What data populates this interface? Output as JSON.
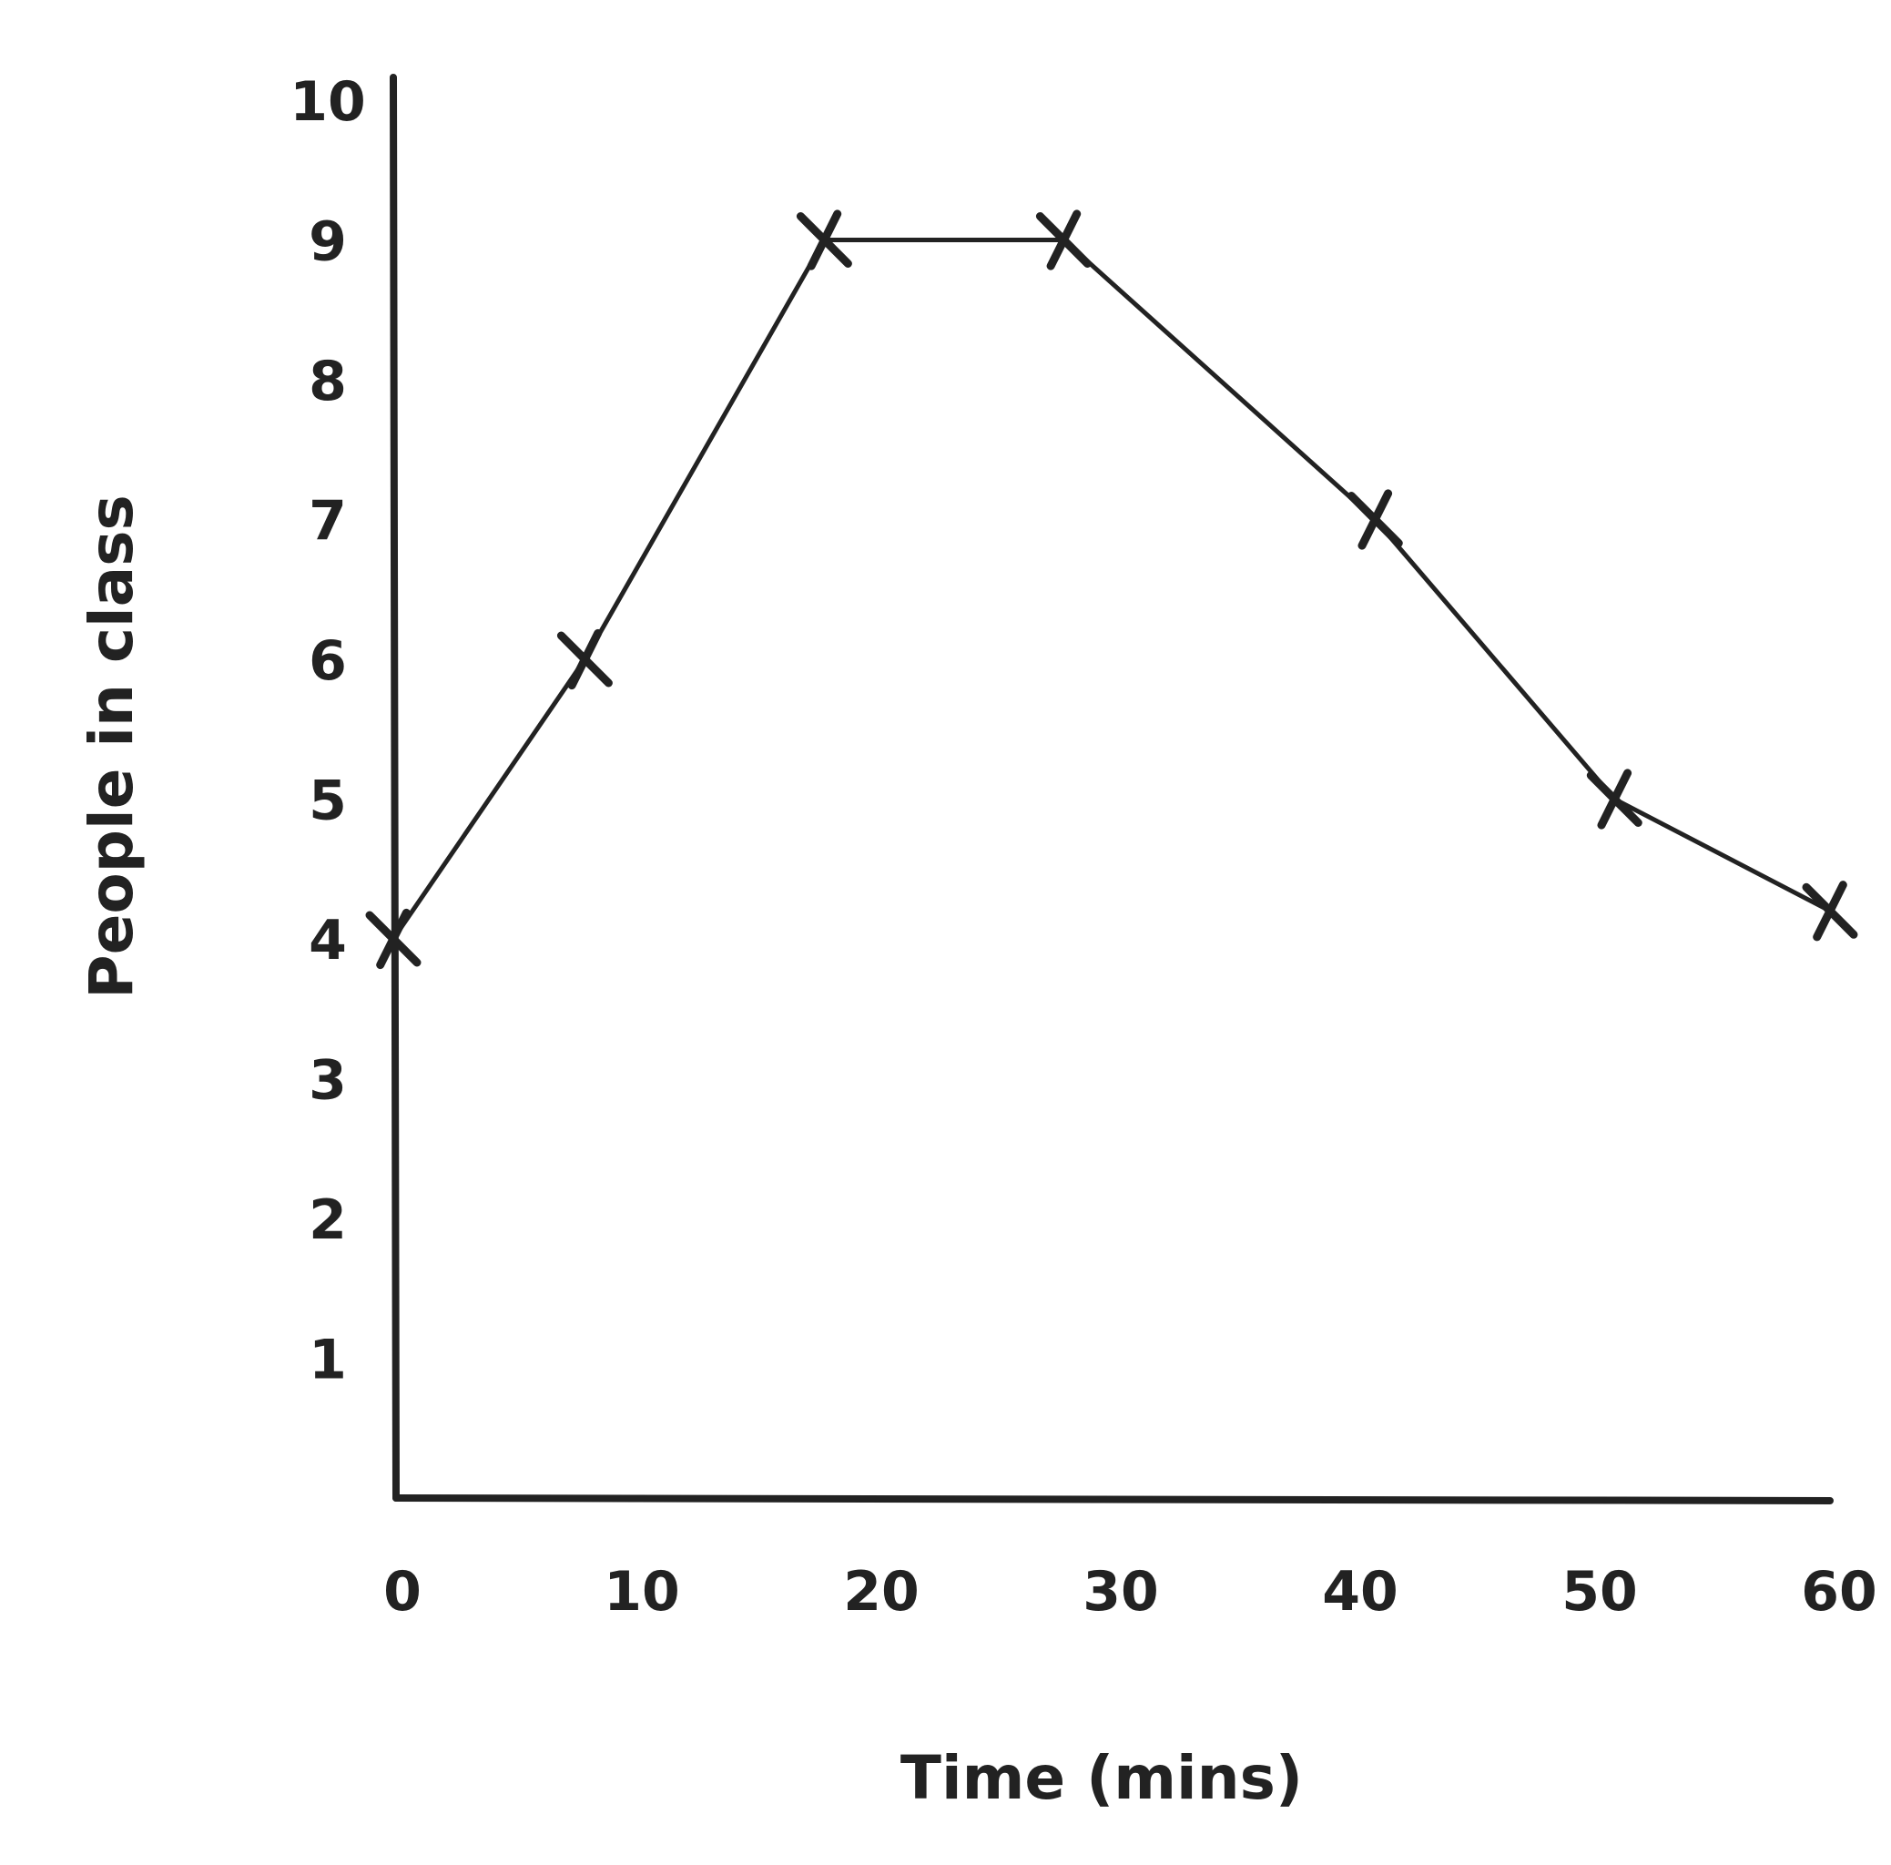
{
  "chart_data": {
    "type": "line",
    "title": "",
    "xlabel": "Time (mins)",
    "ylabel": "People in class",
    "x_ticks": [
      "0",
      "10",
      "20",
      "30",
      "40",
      "50",
      "60"
    ],
    "y_ticks": [
      "1",
      "2",
      "3",
      "4",
      "5",
      "6",
      "7",
      "8",
      "9",
      "10"
    ],
    "xlim": [
      0,
      60
    ],
    "ylim": [
      0,
      10
    ],
    "grid": false,
    "marker": "x",
    "series": [
      {
        "points": [
          {
            "x": 0,
            "y": 4
          },
          {
            "x": 8,
            "y": 6
          },
          {
            "x": 18,
            "y": 9
          },
          {
            "x": 28,
            "y": 9
          },
          {
            "x": 41,
            "y": 7
          },
          {
            "x": 51,
            "y": 5
          },
          {
            "x": 60,
            "y": 4.2
          }
        ]
      }
    ]
  }
}
